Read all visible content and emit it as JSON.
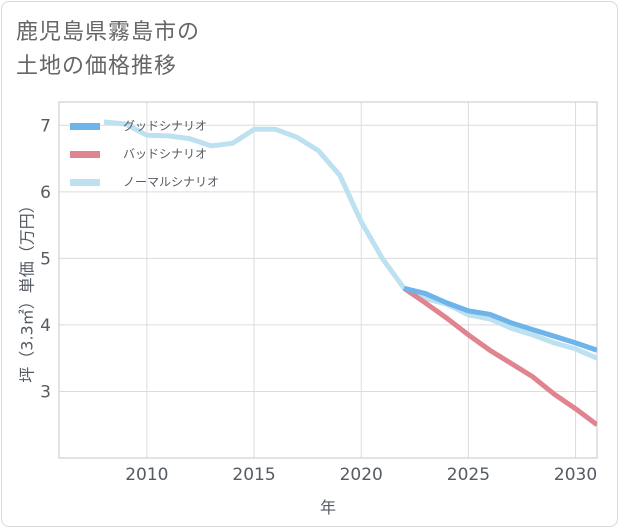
{
  "title": {
    "line1": "鹿児島県霧島市の",
    "line2": "土地の価格推移"
  },
  "chart_data": {
    "type": "line",
    "xlabel": "年",
    "ylabel": "坪（3.3㎡）単価（万円）",
    "xlim": [
      2005.9,
      2031
    ],
    "ylim": [
      2.0,
      7.35
    ],
    "xticks": [
      2010,
      2015,
      2020,
      2025,
      2030
    ],
    "yticks": [
      3,
      4,
      5,
      6,
      7
    ],
    "grid": true,
    "legend_position": "top-left",
    "series": [
      {
        "name": "グッドシナリオ",
        "color": "#6cb4ea",
        "x": [
          2022,
          2023,
          2024,
          2025,
          2026,
          2027,
          2028,
          2029,
          2030,
          2031
        ],
        "y": [
          4.55,
          4.47,
          4.33,
          4.21,
          4.16,
          4.03,
          3.93,
          3.83,
          3.73,
          3.62
        ]
      },
      {
        "name": "バッドシナリオ",
        "color": "#e0848f",
        "x": [
          2022,
          2023,
          2024,
          2025,
          2026,
          2027,
          2028,
          2029,
          2030,
          2031
        ],
        "y": [
          4.55,
          4.33,
          4.1,
          3.85,
          3.62,
          3.42,
          3.22,
          2.96,
          2.74,
          2.5
        ]
      },
      {
        "name": "ノーマルシナリオ",
        "color": "#bde1f0",
        "x": [
          2008,
          2009,
          2010,
          2011,
          2012,
          2013,
          2014,
          2015,
          2016,
          2017,
          2018,
          2019,
          2020,
          2021,
          2022,
          2023,
          2024,
          2025,
          2026,
          2027,
          2028,
          2029,
          2030,
          2031
        ],
        "y": [
          7.05,
          7.02,
          6.85,
          6.84,
          6.8,
          6.69,
          6.73,
          6.94,
          6.94,
          6.82,
          6.62,
          6.25,
          5.55,
          4.99,
          4.55,
          4.4,
          4.31,
          4.15,
          4.09,
          3.95,
          3.85,
          3.73,
          3.64,
          3.5
        ]
      }
    ]
  }
}
